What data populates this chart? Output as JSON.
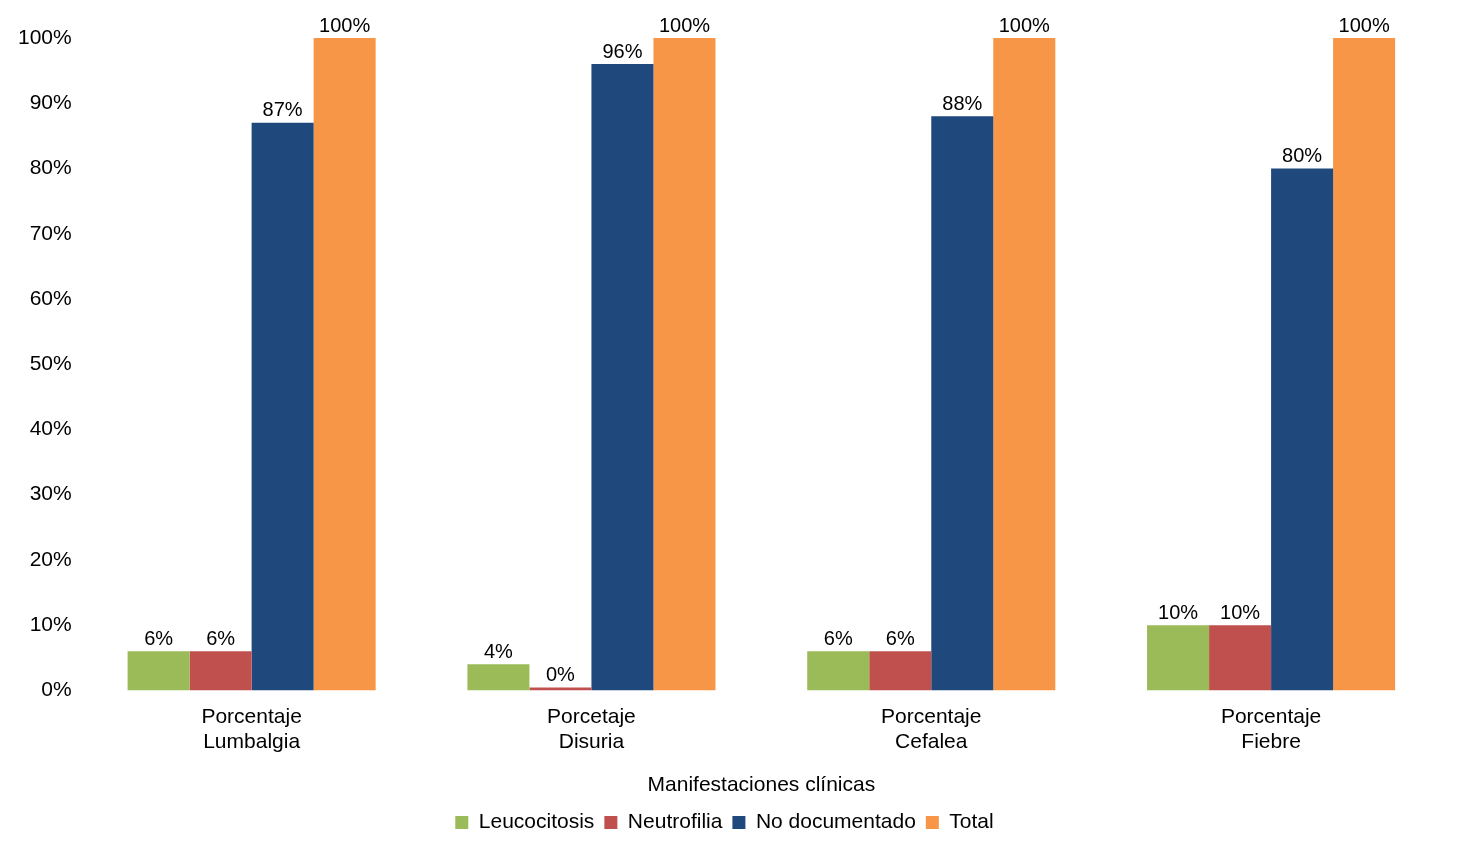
{
  "chart_data": {
    "type": "bar",
    "xlabel": "Manifestaciones clínicas",
    "categories": [
      "Porcentaje\nLumbalgia",
      "Porcetaje\nDisuria",
      "Porcentaje\nCefalea",
      "Porcentaje\nFiebre"
    ],
    "series": [
      {
        "name": "Leucocitosis",
        "color": "#9bbb59",
        "values": [
          6,
          4,
          6,
          10
        ],
        "value_labels": [
          "6%",
          "4%",
          "6%",
          "10%"
        ]
      },
      {
        "name": "Neutrofilia",
        "color": "#c0504d",
        "values": [
          6,
          0,
          6,
          10
        ],
        "value_labels": [
          "6%",
          "0%",
          "6%",
          "10%"
        ]
      },
      {
        "name": "No documentado",
        "color": "#1f497d",
        "values": [
          87,
          96,
          88,
          80
        ],
        "value_labels": [
          "87%",
          "96%",
          "88%",
          "80%"
        ]
      },
      {
        "name": "Total",
        "color": "#f79646",
        "values": [
          100,
          100,
          100,
          100
        ],
        "value_labels": [
          "100%",
          "100%",
          "100%",
          "100%"
        ]
      }
    ],
    "ylim": [
      0,
      100
    ],
    "yticks": [
      {
        "value": 0,
        "label": "0%"
      },
      {
        "value": 10,
        "label": "10%"
      },
      {
        "value": 20,
        "label": "20%"
      },
      {
        "value": 30,
        "label": "30%"
      },
      {
        "value": 40,
        "label": "40%"
      },
      {
        "value": 50,
        "label": "50%"
      },
      {
        "value": 60,
        "label": "60%"
      },
      {
        "value": 70,
        "label": "70%"
      },
      {
        "value": 80,
        "label": "80%"
      },
      {
        "value": 90,
        "label": "90%"
      },
      {
        "value": 100,
        "label": "100%"
      }
    ],
    "grid": false,
    "legend": "bottom"
  }
}
